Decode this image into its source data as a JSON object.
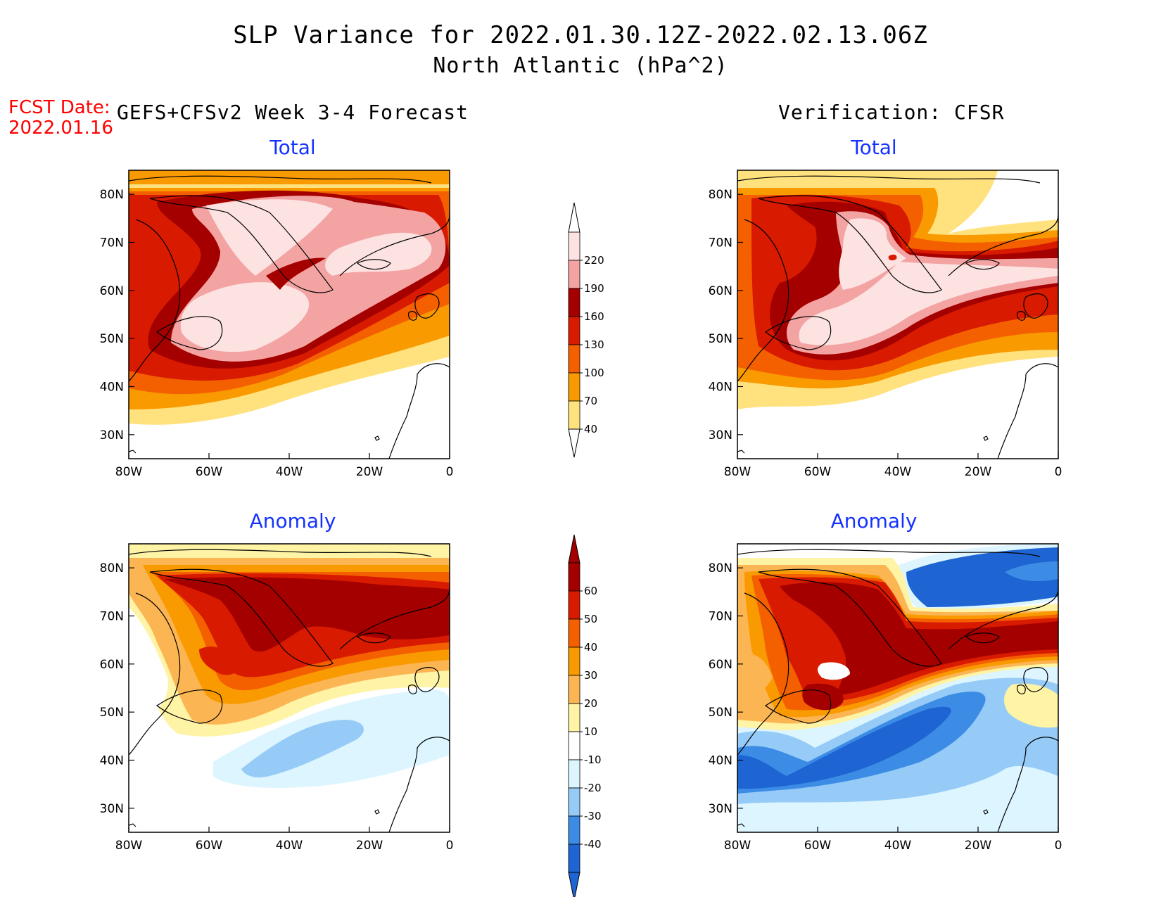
{
  "title": {
    "line1": "SLP Variance for 2022.01.30.12Z-2022.02.13.06Z",
    "line2": "North Atlantic (hPa^2)"
  },
  "fcst_date": {
    "label": "FCST Date:",
    "value": "2022.01.16"
  },
  "columns": {
    "left": "GEFS+CFSv2 Week 3-4 Forecast",
    "right": "Verification: CFSR"
  },
  "panel_titles": {
    "total": "Total",
    "anomaly": "Anomaly"
  },
  "map": {
    "lon_ticks": [
      "80W",
      "60W",
      "40W",
      "20W",
      "0"
    ],
    "lat_ticks": [
      "80N",
      "70N",
      "60N",
      "50N",
      "40N",
      "30N"
    ],
    "lon_range": [
      -80,
      0
    ],
    "lat_range": [
      25,
      85
    ]
  },
  "colorbars": {
    "total": {
      "labels": [
        "220",
        "190",
        "160",
        "130",
        "100",
        "70",
        "40"
      ],
      "colors": [
        "#fde2e2",
        "#f4a3a3",
        "#a50000",
        "#d81a00",
        "#f46000",
        "#f99a00",
        "#ffe27e"
      ]
    },
    "anomaly": {
      "labels": [
        "60",
        "50",
        "40",
        "30",
        "20",
        "10",
        "-10",
        "-20",
        "-30",
        "-40"
      ],
      "colors": [
        "#a50000",
        "#d81a00",
        "#f46000",
        "#f99a00",
        "#fcb553",
        "#fff3a6",
        "#ffffff",
        "#dcf5ff",
        "#96cbf7",
        "#3c8ce6",
        "#1e64d2"
      ]
    }
  },
  "colors": {
    "text": "#000000",
    "fcst": "#ff0000",
    "panel_title": "#1432ff"
  }
}
